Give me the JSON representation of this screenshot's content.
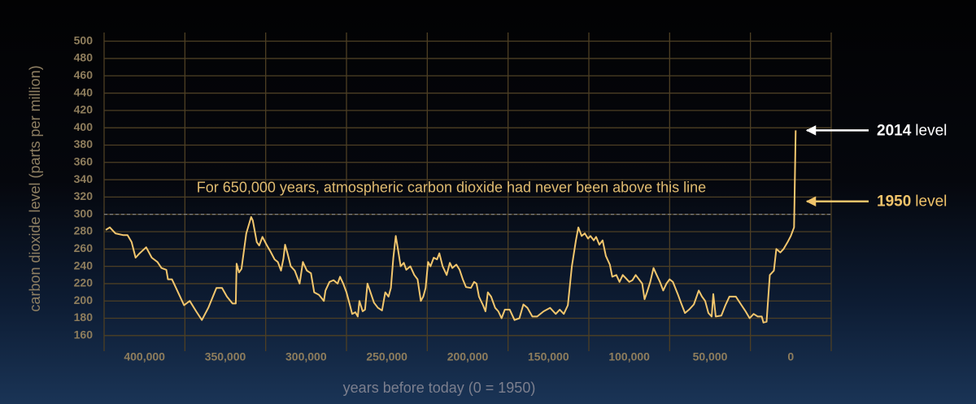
{
  "chart_data": {
    "type": "line",
    "ylabel": "carbon dioxide level (parts per million)",
    "xlabel": "years before today (0 = 1950)",
    "ylim": [
      142,
      510
    ],
    "yticks": [
      160,
      180,
      200,
      220,
      240,
      260,
      280,
      300,
      320,
      340,
      360,
      380,
      400,
      420,
      440,
      460,
      480,
      500
    ],
    "xlim": [
      425000,
      -25000
    ],
    "xticks": [
      {
        "value": 400000,
        "label": "400,000"
      },
      {
        "value": 350000,
        "label": "350,000"
      },
      {
        "value": 300000,
        "label": "300,000"
      },
      {
        "value": 250000,
        "label": "250,000"
      },
      {
        "value": 200000,
        "label": "200,000"
      },
      {
        "value": 150000,
        "label": "150,000"
      },
      {
        "value": 100000,
        "label": "100,000"
      },
      {
        "value": 50000,
        "label": "50,000"
      },
      0
    ],
    "xgrid": [
      425000,
      375000,
      325000,
      275000,
      225000,
      175000,
      125000,
      75000,
      25000,
      -25000
    ],
    "grid": true,
    "reference_line": {
      "value": 300,
      "label": "For 650,000 years, atmospheric carbon dioxide had never been above this line"
    },
    "annotations": [
      {
        "bold": "2014",
        "text": "level",
        "value": 397,
        "color": "#ffffff"
      },
      {
        "bold": "1950",
        "text": "level",
        "value": 315,
        "color": "#f0c36a"
      }
    ],
    "series": [
      {
        "color": "#f2c66d",
        "x": [
          424000,
          421500,
          418000,
          413000,
          410500,
          408000,
          405500,
          403000,
          399000,
          395500,
          392000,
          389500,
          386500,
          385500,
          383000,
          380500,
          378000,
          375500,
          372000,
          368000,
          364500,
          360500,
          355500,
          352000,
          349000,
          345500,
          343500,
          343000,
          341500,
          340000,
          337000,
          334000,
          333000,
          330500,
          329000,
          327000,
          324500,
          322000,
          319500,
          317500,
          315500,
          314000,
          313000,
          311500,
          309500,
          307000,
          304000,
          302000,
          299500,
          297000,
          295000,
          292000,
          289000,
          288000,
          285500,
          283000,
          280500,
          279000,
          277000,
          275000,
          273000,
          271500,
          269500,
          268000,
          267000,
          265000,
          263500,
          262000,
          260500,
          258000,
          255500,
          253000,
          251000,
          249000,
          247500,
          246000,
          244500,
          243000,
          241500,
          239500,
          238000,
          235500,
          233000,
          231000,
          229000,
          227500,
          226000,
          224500,
          223000,
          221000,
          219000,
          217500,
          215500,
          213000,
          211000,
          209500,
          207000,
          205000,
          203000,
          201000,
          198000,
          196000,
          194500,
          193000,
          190500,
          189000,
          187500,
          185500,
          183000,
          181000,
          179000,
          177000,
          174000,
          171000,
          168000,
          165500,
          163000,
          160000,
          157000,
          153000,
          149000,
          145500,
          143000,
          140500,
          138000,
          135500,
          133000,
          131500,
          129500,
          127500,
          125500,
          124000,
          122000,
          120500,
          118500,
          116500,
          114500,
          112000,
          110500,
          108000,
          106000,
          104000,
          102000,
          100000,
          98000,
          96000,
          94000,
          92000,
          90500,
          89000,
          87000,
          85000,
          83000,
          81000,
          79000,
          77000,
          75000,
          73000,
          70000,
          68000,
          65500,
          63000,
          60000,
          57000,
          55000,
          53000,
          51000,
          49000,
          48000,
          46500,
          43000,
          40500,
          38000,
          34000,
          30500,
          28000,
          25500,
          23000,
          20500,
          18000,
          17000,
          15000,
          13000,
          10500,
          9000,
          6500,
          4500,
          2000,
          0,
          -2000,
          -3000
        ],
        "values": [
          282,
          285,
          278,
          276,
          276,
          268,
          250,
          255,
          262,
          250,
          245,
          238,
          236,
          225,
          225,
          215,
          205,
          195,
          200,
          188,
          178,
          192,
          215,
          215,
          205,
          197,
          197,
          243,
          233,
          237,
          278,
          297,
          293,
          268,
          264,
          274,
          265,
          257,
          248,
          245,
          235,
          249,
          265,
          255,
          240,
          235,
          220,
          245,
          235,
          232,
          210,
          207,
          200,
          212,
          222,
          224,
          220,
          228,
          220,
          210,
          196,
          185,
          187,
          182,
          200,
          188,
          190,
          220,
          212,
          198,
          192,
          189,
          210,
          205,
          215,
          250,
          275,
          258,
          240,
          244,
          236,
          240,
          230,
          225,
          200,
          205,
          215,
          245,
          240,
          250,
          248,
          255,
          240,
          230,
          244,
          238,
          242,
          236,
          225,
          216,
          215,
          222,
          220,
          205,
          195,
          188,
          210,
          205,
          192,
          188,
          180,
          190,
          190,
          178,
          180,
          196,
          192,
          182,
          182,
          188,
          192,
          185,
          190,
          185,
          195,
          240,
          270,
          285,
          275,
          278,
          272,
          275,
          270,
          274,
          265,
          270,
          252,
          242,
          228,
          230,
          222,
          230,
          226,
          222,
          224,
          230,
          225,
          220,
          202,
          210,
          222,
          238,
          230,
          222,
          212,
          220,
          225,
          222,
          208,
          198,
          186,
          190,
          196,
          212,
          205,
          200,
          186,
          182,
          208,
          182,
          183,
          195,
          205,
          205,
          195,
          188,
          180,
          185,
          182,
          182,
          175,
          176,
          230,
          235,
          260,
          256,
          260,
          268,
          275,
          285,
          397
        ]
      }
    ]
  }
}
